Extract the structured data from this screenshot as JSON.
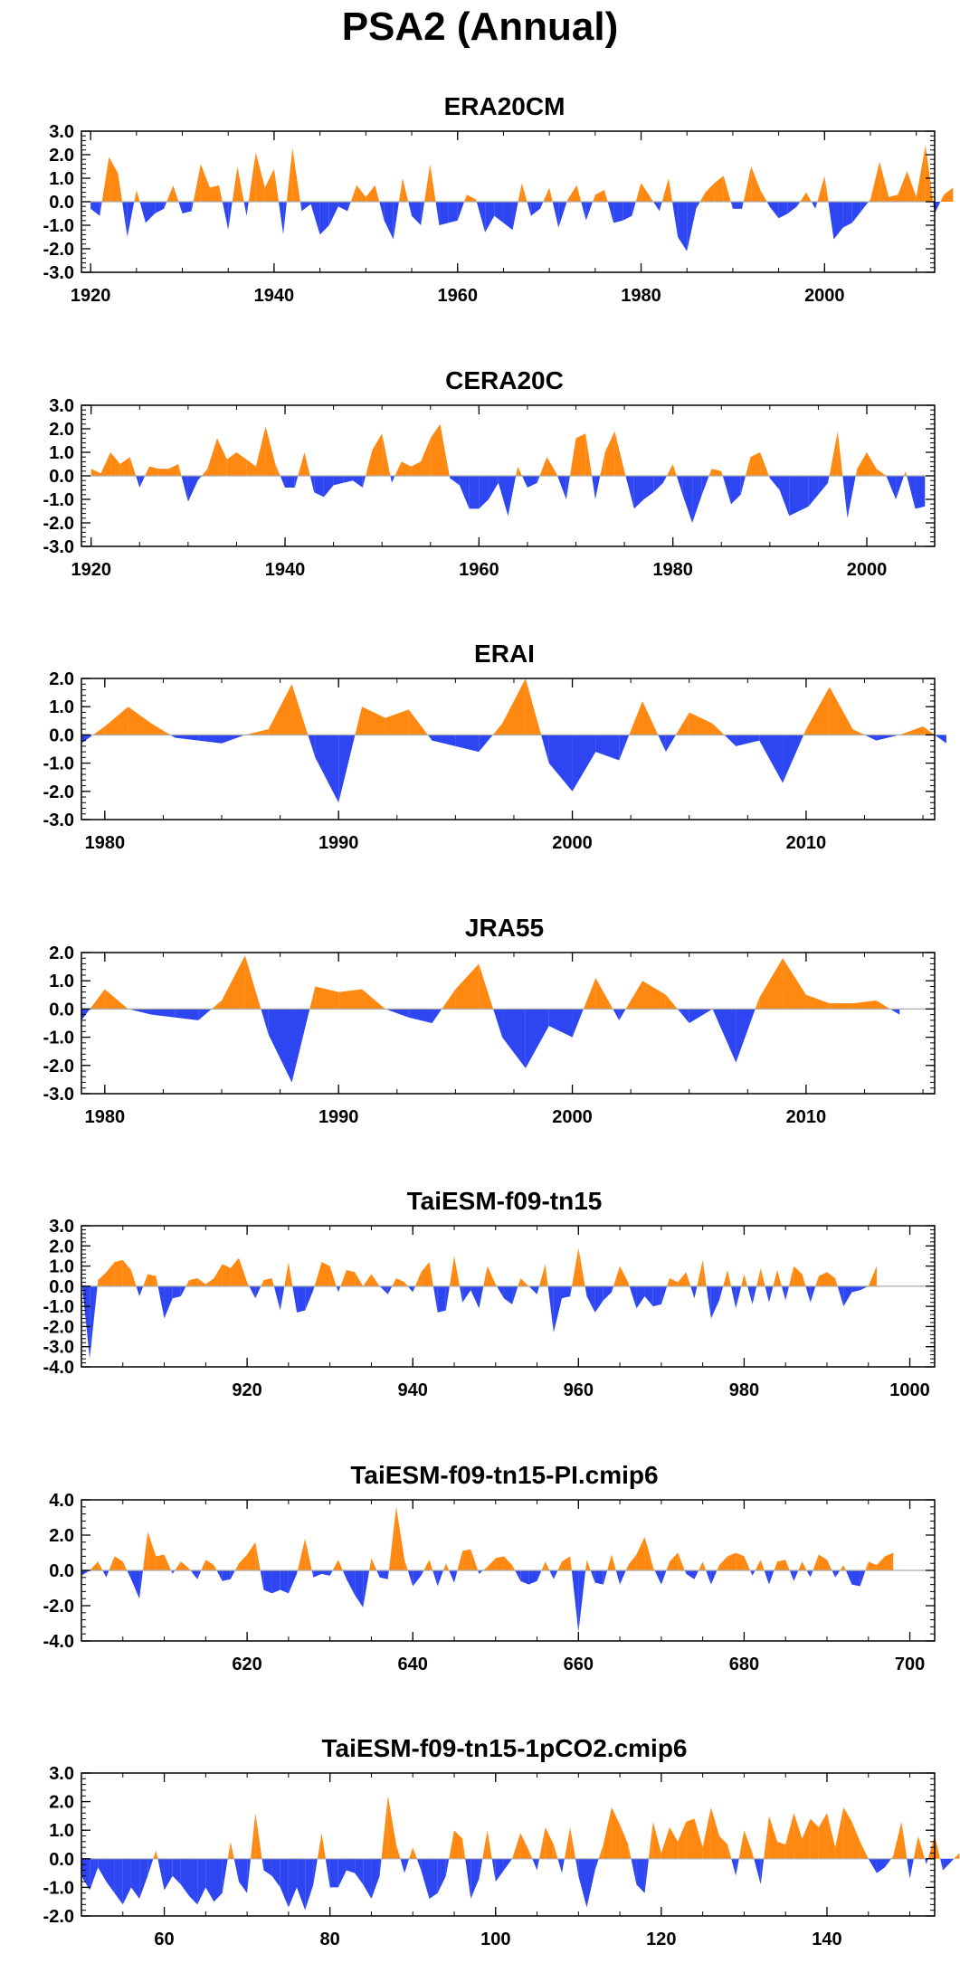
{
  "figure": {
    "title": "PSA2 (Annual)"
  },
  "colors": {
    "positive": "#ff8811",
    "negative": "#2d46f2",
    "axis": "#000000",
    "zero": "#aaaaaa"
  },
  "chart_data": [
    {
      "type": "area",
      "title": "ERA20CM",
      "xlim": [
        1919,
        2012
      ],
      "ylim": [
        -3.0,
        3.0
      ],
      "yticks": [
        3.0,
        2.0,
        1.0,
        0.0,
        -1.0,
        -2.0,
        -3.0
      ],
      "ytick_labels": [
        "3.0",
        "2.0",
        "1.0",
        "0.0",
        "-1.0",
        "-2.0",
        "-3.0"
      ],
      "xticks": [
        1920,
        1940,
        1960,
        1980,
        2000
      ],
      "xtick_labels": [
        "1920",
        "1940",
        "1960",
        "1980",
        "2000"
      ],
      "x_start": 1920,
      "values": [
        -0.3,
        -0.6,
        1.9,
        1.2,
        -1.5,
        0.5,
        -0.9,
        -0.5,
        -0.3,
        0.7,
        -0.5,
        -0.4,
        1.6,
        0.6,
        0.7,
        -1.2,
        1.5,
        -0.6,
        2.1,
        0.6,
        1.4,
        -1.4,
        2.3,
        -0.4,
        -0.1,
        -1.4,
        -1.0,
        -0.2,
        -0.4,
        0.7,
        0.2,
        0.7,
        -0.8,
        -1.6,
        1.0,
        -0.6,
        -1.0,
        1.6,
        -1.0,
        -0.9,
        -0.8,
        0.3,
        0.1,
        -1.3,
        -0.6,
        -0.9,
        -1.2,
        0.8,
        -0.6,
        -0.3,
        0.6,
        -1.1,
        0.1,
        0.7,
        -0.8,
        0.3,
        0.5,
        -0.9,
        -0.8,
        -0.6,
        0.8,
        0.2,
        -0.4,
        1.0,
        -1.5,
        -2.1,
        -0.3,
        0.4,
        0.8,
        1.1,
        -0.3,
        -0.3,
        1.5,
        0.5,
        -0.2,
        -0.7,
        -0.5,
        -0.2,
        0.4,
        -0.3,
        1.1,
        -1.6,
        -1.1,
        -0.9,
        -0.4,
        0.1,
        1.7,
        0.2,
        0.3,
        1.3,
        0.2,
        2.4,
        -0.5,
        0.3,
        0.6
      ]
    },
    {
      "type": "area",
      "title": "CERA20C",
      "xlim": [
        1919,
        2007
      ],
      "ylim": [
        -3.0,
        3.0
      ],
      "yticks": [
        3.0,
        2.0,
        1.0,
        0.0,
        -1.0,
        -2.0,
        -3.0
      ],
      "ytick_labels": [
        "3.0",
        "2.0",
        "1.0",
        "0.0",
        "-1.0",
        "-2.0",
        "-3.0"
      ],
      "xticks": [
        1920,
        1940,
        1960,
        1980,
        2000
      ],
      "xtick_labels": [
        "1920",
        "1940",
        "1960",
        "1980",
        "2000"
      ],
      "x_start": 1920,
      "values": [
        0.3,
        0.1,
        1.0,
        0.5,
        0.8,
        -0.5,
        0.4,
        0.3,
        0.3,
        0.5,
        -1.1,
        -0.2,
        0.3,
        1.6,
        0.7,
        1.0,
        0.7,
        0.4,
        2.1,
        0.5,
        -0.5,
        -0.5,
        1.0,
        -0.7,
        -0.9,
        -0.4,
        -0.3,
        -0.2,
        -0.5,
        1.1,
        1.8,
        -0.3,
        0.6,
        0.4,
        0.6,
        1.6,
        2.2,
        -0.1,
        -0.4,
        -1.4,
        -1.4,
        -1.0,
        -0.3,
        -1.7,
        0.4,
        -0.5,
        -0.3,
        0.8,
        0.1,
        -1.0,
        1.6,
        1.8,
        -1.0,
        1.0,
        1.9,
        0.2,
        -1.4,
        -1.0,
        -0.7,
        -0.3,
        0.5,
        -0.8,
        -2.0,
        -0.8,
        0.3,
        0.2,
        -1.2,
        -0.8,
        0.8,
        1.0,
        -0.1,
        -0.6,
        -1.7,
        -1.5,
        -1.3,
        -0.8,
        -0.3,
        1.9,
        -1.8,
        0.3,
        1.0,
        0.3,
        0.0,
        -1.0,
        0.2,
        -1.4,
        -1.3
      ]
    },
    {
      "type": "area",
      "title": "ERAI",
      "xlim": [
        1979,
        2015.5
      ],
      "ylim": [
        -3.0,
        2.0
      ],
      "yticks": [
        2.0,
        1.0,
        0.0,
        -1.0,
        -2.0,
        -3.0
      ],
      "ytick_labels": [
        "2.0",
        "1.0",
        "0.0",
        "-1.0",
        "-2.0",
        "-3.0"
      ],
      "xticks": [
        1980,
        1990,
        2000,
        2010
      ],
      "xtick_labels": [
        "1980",
        "1990",
        "2000",
        "2010"
      ],
      "x_start": 1979,
      "values": [
        -0.3,
        0.3,
        1.0,
        0.4,
        -0.1,
        -0.2,
        -0.3,
        0.0,
        0.2,
        1.8,
        -0.8,
        -2.4,
        1.0,
        0.6,
        0.9,
        -0.2,
        -0.4,
        -0.6,
        0.4,
        2.0,
        -1.0,
        -2.0,
        -0.6,
        -0.9,
        1.2,
        -0.6,
        0.8,
        0.4,
        -0.4,
        -0.2,
        -1.7,
        0.2,
        1.7,
        0.2,
        -0.2,
        0.0,
        0.3,
        -0.3
      ]
    },
    {
      "type": "area",
      "title": "JRA55",
      "xlim": [
        1979,
        2015.5
      ],
      "ylim": [
        -3.0,
        2.0
      ],
      "yticks": [
        2.0,
        1.0,
        0.0,
        -1.0,
        -2.0,
        -3.0
      ],
      "ytick_labels": [
        "2.0",
        "1.0",
        "0.0",
        "-1.0",
        "-2.0",
        "-3.0"
      ],
      "xticks": [
        1980,
        1990,
        2000,
        2010
      ],
      "xtick_labels": [
        "1980",
        "1990",
        "2000",
        "2010"
      ],
      "x_start": 1979,
      "values": [
        -0.4,
        0.7,
        0.0,
        -0.2,
        -0.3,
        -0.4,
        0.3,
        1.9,
        -0.9,
        -2.6,
        0.8,
        0.6,
        0.7,
        0.0,
        -0.3,
        -0.5,
        0.7,
        1.6,
        -1.0,
        -2.1,
        -0.6,
        -1.0,
        1.1,
        -0.4,
        1.0,
        0.5,
        -0.5,
        0.0,
        -1.9,
        0.4,
        1.8,
        0.5,
        0.2,
        0.2,
        0.3,
        -0.2
      ]
    },
    {
      "type": "area",
      "title": "TaiESM-f09-tn15",
      "xlim": [
        900,
        1003
      ],
      "ylim": [
        -4.0,
        3.0
      ],
      "yticks": [
        3.0,
        2.0,
        1.0,
        0.0,
        -1.0,
        -2.0,
        -3.0,
        -4.0
      ],
      "ytick_labels": [
        "3.0",
        "2.0",
        "1.0",
        "0.0",
        "-1.0",
        "-2.0",
        "-3.0",
        "-4.0"
      ],
      "xticks": [
        920,
        940,
        960,
        980,
        1000
      ],
      "xtick_labels": [
        "920",
        "940",
        "960",
        "980",
        "1000"
      ],
      "x_start": 900,
      "values": [
        0.4,
        -3.6,
        0.3,
        0.7,
        1.2,
        1.3,
        0.8,
        -0.5,
        0.6,
        0.5,
        -1.6,
        -0.6,
        -0.5,
        0.3,
        0.4,
        0.1,
        0.4,
        1.1,
        0.9,
        1.4,
        0.2,
        -0.6,
        0.3,
        0.4,
        -1.2,
        1.2,
        -1.3,
        -1.2,
        -0.2,
        1.2,
        1.0,
        -0.3,
        0.8,
        0.7,
        0.0,
        0.6,
        0.0,
        -0.4,
        0.4,
        0.2,
        -0.3,
        0.7,
        1.2,
        -1.3,
        -1.2,
        1.5,
        -0.8,
        -0.2,
        -1.1,
        1.0,
        0.1,
        -0.6,
        -0.9,
        0.4,
        0.0,
        -0.4,
        1.1,
        -2.3,
        -0.6,
        -0.5,
        1.9,
        -0.5,
        -1.3,
        -0.7,
        -0.3,
        1.0,
        0.2,
        -1.1,
        -0.5,
        -1.0,
        -0.9,
        0.4,
        0.2,
        0.7,
        -0.6,
        1.3,
        -1.6,
        -0.7,
        0.8,
        -1.1,
        0.6,
        -0.9,
        0.9,
        -0.8,
        0.8,
        -0.7,
        1.0,
        0.6,
        -0.8,
        0.5,
        0.7,
        0.4,
        -1.0,
        -0.3,
        -0.2,
        0.0,
        1.0
      ]
    },
    {
      "type": "area",
      "title": "TaiESM-f09-tn15-PI.cmip6",
      "xlim": [
        600,
        703
      ],
      "ylim": [
        -4.0,
        4.0
      ],
      "yticks": [
        4.0,
        2.0,
        0.0,
        -2.0,
        -4.0
      ],
      "ytick_labels": [
        "4.0",
        "2.0",
        "0.0",
        "-2.0",
        "-4.0"
      ],
      "xticks": [
        620,
        640,
        660,
        680,
        700
      ],
      "xtick_labels": [
        "620",
        "640",
        "660",
        "680",
        "700"
      ],
      "x_start": 600,
      "values": [
        -0.3,
        0.0,
        0.5,
        -0.4,
        0.8,
        0.5,
        -0.5,
        -1.6,
        2.2,
        0.8,
        0.9,
        -0.2,
        0.5,
        0.1,
        -0.5,
        0.6,
        0.3,
        -0.6,
        -0.5,
        0.4,
        0.9,
        1.6,
        -1.1,
        -1.3,
        -1.1,
        -1.3,
        -0.2,
        1.8,
        -0.4,
        -0.2,
        -0.3,
        0.6,
        -0.5,
        -1.4,
        -2.1,
        0.7,
        -0.4,
        -0.5,
        3.6,
        0.6,
        -0.9,
        -0.3,
        0.6,
        -0.9,
        0.4,
        -0.7,
        1.1,
        1.2,
        -0.2,
        0.2,
        0.7,
        0.8,
        0.3,
        -0.6,
        -0.8,
        -0.6,
        0.5,
        -0.5,
        0.5,
        0.8,
        -3.5,
        0.6,
        -0.7,
        -0.8,
        0.9,
        -0.8,
        0.3,
        0.9,
        1.9,
        0.2,
        -0.8,
        0.5,
        1.0,
        -0.2,
        -0.5,
        0.5,
        -0.8,
        0.3,
        0.8,
        1.0,
        0.8,
        -0.3,
        0.6,
        -0.8,
        0.5,
        0.6,
        -0.6,
        0.5,
        -0.4,
        0.9,
        0.6,
        -0.4,
        0.3,
        -0.8,
        -0.9,
        0.5,
        0.3,
        0.8,
        1.0
      ]
    },
    {
      "type": "area",
      "title": "TaiESM-f09-tn15-1pCO2.cmip6",
      "xlim": [
        50,
        153
      ],
      "ylim": [
        -2.0,
        3.0
      ],
      "yticks": [
        3.0,
        2.0,
        1.0,
        0.0,
        -1.0,
        -2.0
      ],
      "ytick_labels": [
        "3.0",
        "2.0",
        "1.0",
        "0.0",
        "-1.0",
        "-2.0"
      ],
      "xticks": [
        60,
        80,
        100,
        120,
        140
      ],
      "xtick_labels": [
        "60",
        "80",
        "100",
        "120",
        "140"
      ],
      "x_start": 50,
      "values": [
        -0.6,
        -1.1,
        -0.3,
        -0.8,
        -1.2,
        -1.6,
        -1.0,
        -1.4,
        -0.6,
        0.3,
        -1.1,
        -0.6,
        -0.9,
        -1.3,
        -1.6,
        -1.0,
        -1.5,
        -1.2,
        0.6,
        -0.8,
        -1.2,
        1.6,
        -0.4,
        -0.6,
        -1.0,
        -1.7,
        -1.0,
        -1.8,
        -0.9,
        0.9,
        -1.0,
        -1.0,
        -0.4,
        -0.5,
        -0.9,
        -1.4,
        -0.6,
        2.2,
        0.5,
        -0.5,
        0.4,
        -0.4,
        -1.4,
        -1.2,
        -0.6,
        1.0,
        0.7,
        -1.4,
        -0.7,
        1.0,
        -0.8,
        -0.4,
        0.0,
        0.9,
        0.3,
        -0.4,
        1.1,
        0.5,
        -0.5,
        1.1,
        -0.6,
        -1.7,
        -0.4,
        0.5,
        1.8,
        1.2,
        0.5,
        -0.9,
        -1.2,
        1.3,
        0.2,
        1.1,
        0.6,
        1.3,
        1.4,
        0.4,
        1.8,
        0.8,
        0.5,
        -0.6,
        1.0,
        0.2,
        -0.9,
        1.5,
        0.6,
        0.5,
        1.6,
        0.7,
        1.4,
        1.1,
        1.6,
        0.4,
        1.8,
        1.3,
        0.6,
        0.0,
        -0.5,
        -0.3,
        0.1,
        1.3,
        -0.7,
        0.8,
        -0.2,
        0.8,
        -0.4,
        -0.1,
        0.2
      ]
    }
  ]
}
